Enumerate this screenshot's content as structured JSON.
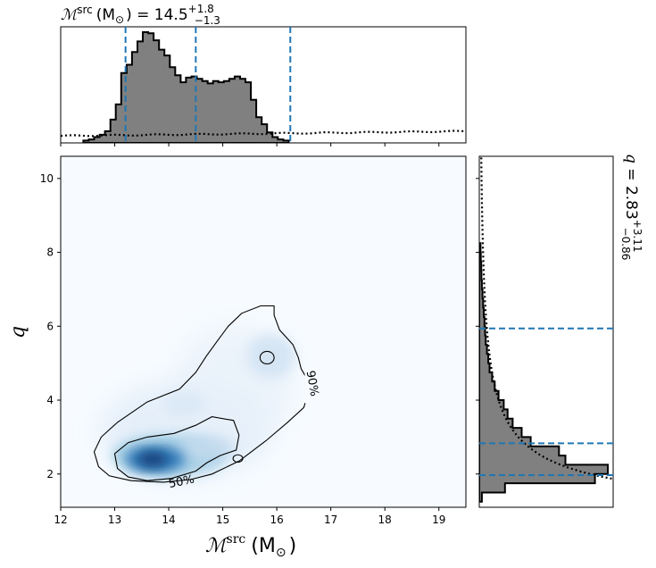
{
  "chart_data": [
    {
      "type": "heatmap",
      "panel": "joint",
      "xlabel_symbol": "ℳ",
      "xlabel_sup": "src",
      "xlabel_unit": "(M",
      "xlabel_unit_sub": "⊙",
      "xlabel_close": ")",
      "ylabel": "q",
      "xlim": [
        12,
        19.5
      ],
      "ylim": [
        1.1,
        10.6
      ],
      "xticks": [
        "12",
        "13",
        "14",
        "15",
        "16",
        "17",
        "18",
        "19"
      ],
      "yticks": [
        "2",
        "4",
        "6",
        "8",
        "10"
      ],
      "density_colormap": "Blues",
      "density_peak": {
        "x": 13.7,
        "y": 2.4
      },
      "contours": [
        {
          "label": "50%",
          "level": 0.5
        },
        {
          "label": "90%",
          "level": 0.9
        }
      ]
    },
    {
      "type": "bar",
      "panel": "top-marginal",
      "title_prefix": "ℳ",
      "title_sup": "src",
      "title_unit": "(M",
      "title_unit_sub": "⊙",
      "title_value": ") = 14.5",
      "title_plus": "+1.8",
      "title_minus": "−1.3",
      "xlim": [
        12,
        19.5
      ],
      "median": 14.5,
      "credible_interval": [
        13.2,
        16.25
      ],
      "histogram": {
        "edges_start": 12.42,
        "bin_width": 0.1,
        "counts": [
          0.02,
          0.03,
          0.05,
          0.07,
          0.1,
          0.2,
          0.33,
          0.6,
          0.67,
          0.78,
          0.87,
          0.95,
          0.94,
          0.88,
          0.8,
          0.75,
          0.65,
          0.58,
          0.52,
          0.56,
          0.57,
          0.55,
          0.53,
          0.51,
          0.53,
          0.52,
          0.53,
          0.55,
          0.57,
          0.55,
          0.52,
          0.37,
          0.22,
          0.16,
          0.09,
          0.05,
          0.03,
          0.02
        ]
      },
      "prior_line": "dotted"
    },
    {
      "type": "bar",
      "panel": "right-marginal",
      "title_var": "q",
      "title_value": " = 2.83",
      "title_plus": "+3.11",
      "title_minus": "−0.86",
      "ylim": [
        1.1,
        10.6
      ],
      "median": 2.83,
      "credible_interval": [
        1.97,
        5.94
      ],
      "histogram": {
        "edges_start": 1.25,
        "bin_width": 0.25,
        "counts": [
          0.02,
          0.2,
          0.9,
          1.0,
          0.67,
          0.62,
          0.4,
          0.33,
          0.26,
          0.22,
          0.19,
          0.15,
          0.12,
          0.1,
          0.08,
          0.07,
          0.06,
          0.05,
          0.045,
          0.04,
          0.035,
          0.03,
          0.025,
          0.02,
          0.017,
          0.015,
          0.012,
          0.01
        ]
      },
      "prior_line": "dotted"
    }
  ]
}
